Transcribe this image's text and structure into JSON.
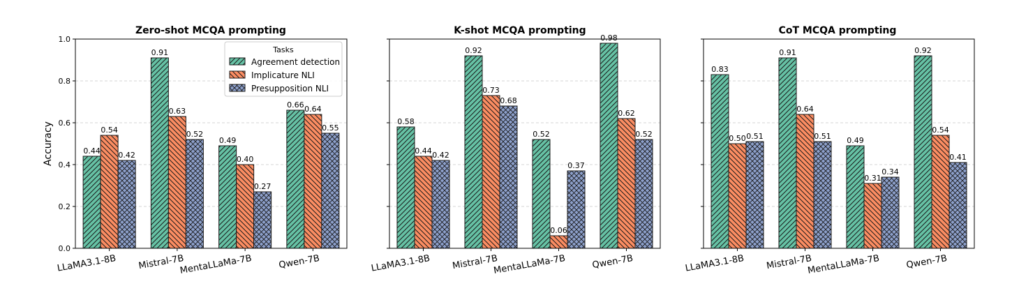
{
  "y_axis_label": "Accuracy",
  "legend": {
    "title": "Tasks",
    "entries": [
      "Agreement detection",
      "Implicature NLI",
      "Presupposition NLI"
    ]
  },
  "series_style": [
    {
      "color": "#66c2a5",
      "pattern": "diagonal-forward"
    },
    {
      "color": "#fc8d62",
      "pattern": "diagonal-back"
    },
    {
      "color": "#8da0cb",
      "pattern": "crosshatch"
    }
  ],
  "chart_data": [
    {
      "type": "bar",
      "title": "Zero-shot MCQA prompting",
      "categories": [
        "LLaMA3.1-8B",
        "Mistral-7B",
        "MentaLLaMa-7B",
        "Qwen-7B"
      ],
      "series": [
        {
          "name": "Agreement detection",
          "values": [
            0.44,
            0.91,
            0.49,
            0.66
          ]
        },
        {
          "name": "Implicature NLI",
          "values": [
            0.54,
            0.63,
            0.4,
            0.64
          ]
        },
        {
          "name": "Presupposition NLI",
          "values": [
            0.42,
            0.52,
            0.27,
            0.55
          ]
        }
      ],
      "ylim": [
        0,
        1.0
      ],
      "yticks": [
        "0.0",
        "0.2",
        "0.4",
        "0.6",
        "0.8",
        "1.0"
      ],
      "ylabel": "Accuracy",
      "grid": "y-dashed",
      "legend": "top-right"
    },
    {
      "type": "bar",
      "title": "K-shot MCQA prompting",
      "categories": [
        "LLaMA3.1-8B",
        "Mistral-7B",
        "MentaLLaMa-7B",
        "Qwen-7B"
      ],
      "series": [
        {
          "name": "Agreement detection",
          "values": [
            0.58,
            0.92,
            0.52,
            0.98
          ]
        },
        {
          "name": "Implicature NLI",
          "values": [
            0.44,
            0.73,
            0.06,
            0.62
          ]
        },
        {
          "name": "Presupposition NLI",
          "values": [
            0.42,
            0.68,
            0.37,
            0.52
          ]
        }
      ],
      "ylim": [
        0,
        1.0
      ],
      "grid": "y-dashed"
    },
    {
      "type": "bar",
      "title": "CoT MCQA prompting",
      "categories": [
        "LLaMA3.1-8B",
        "Mistral-7B",
        "MentaLLaMa-7B",
        "Qwen-7B"
      ],
      "series": [
        {
          "name": "Agreement detection",
          "values": [
            0.83,
            0.91,
            0.49,
            0.92
          ]
        },
        {
          "name": "Implicature NLI",
          "values": [
            0.5,
            0.64,
            0.31,
            0.54
          ]
        },
        {
          "name": "Presupposition NLI",
          "values": [
            0.51,
            0.51,
            0.34,
            0.41
          ]
        }
      ],
      "ylim": [
        0,
        1.0
      ],
      "grid": "y-dashed"
    }
  ]
}
